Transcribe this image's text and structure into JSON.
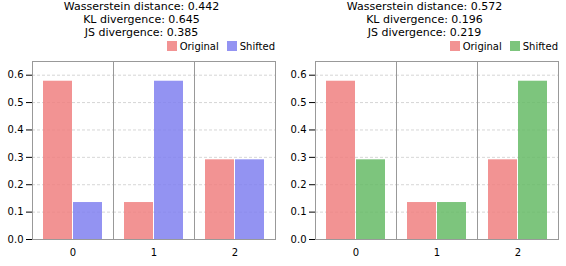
{
  "chart_data": [
    {
      "type": "bar",
      "title": "Wasserstein distance: 0.442\nKL divergence: 0.645\nJS divergence: 0.385",
      "categories": [
        "0",
        "1",
        "2"
      ],
      "series": [
        {
          "name": "Original",
          "color": "#f08080",
          "values": [
            0.578,
            0.135,
            0.291
          ]
        },
        {
          "name": "Shifted",
          "color": "#8080f0",
          "values": [
            0.135,
            0.578,
            0.291
          ]
        }
      ],
      "ylim": [
        0,
        0.65
      ],
      "yticks": [
        {
          "value": 0.0,
          "label": "0.0"
        },
        0.1,
        0.2,
        0.3,
        0.4,
        0.5,
        0.6
      ],
      "grid": true,
      "legend": "upper right"
    },
    {
      "type": "bar",
      "title": "Wasserstein distance: 0.572\nKL divergence: 0.196\nJS divergence: 0.219",
      "categories": [
        "0",
        "1",
        "2"
      ],
      "series": [
        {
          "name": "Original",
          "color": "#f08080",
          "values": [
            0.578,
            0.135,
            0.291
          ]
        },
        {
          "name": "Shifted",
          "color": "#66bb66",
          "values": [
            0.291,
            0.135,
            0.578
          ]
        }
      ],
      "ylim": [
        0,
        0.65
      ],
      "yticks": [
        {
          "value": 0.0,
          "label": "0.0"
        },
        0.1,
        0.2,
        0.3,
        0.4,
        0.5,
        0.6
      ],
      "grid": true,
      "legend": "upper right"
    }
  ]
}
